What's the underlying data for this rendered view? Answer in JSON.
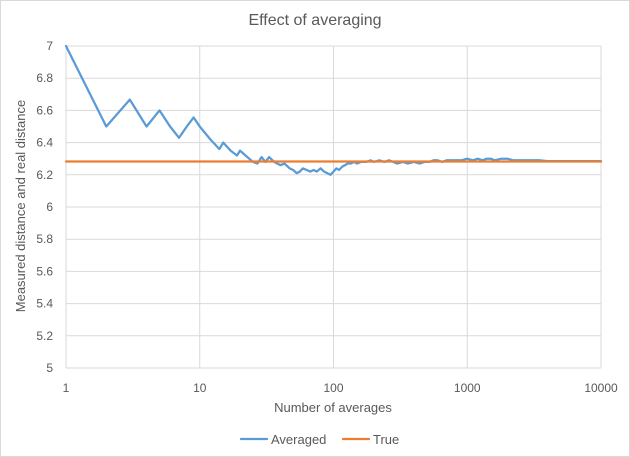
{
  "chart_data": {
    "type": "line",
    "title": "Effect of averaging",
    "xlabel": "Number of averages",
    "ylabel": "Measured distance and real distance",
    "x_scale": "log",
    "xlim": [
      1,
      10000
    ],
    "ylim": [
      5,
      7
    ],
    "x_ticks": [
      "1",
      "10",
      "100",
      "1000",
      "10000"
    ],
    "y_ticks": [
      "5",
      "5.2",
      "5.4",
      "5.6",
      "5.8",
      "6",
      "6.2",
      "6.4",
      "6.6",
      "6.8",
      "7"
    ],
    "grid": true,
    "legend_position": "bottom",
    "series": [
      {
        "name": "Averaged",
        "color": "#5b9bd5",
        "points": [
          [
            1,
            7.0
          ],
          [
            2,
            6.5
          ],
          [
            3,
            6.667
          ],
          [
            4,
            6.5
          ],
          [
            5,
            6.6
          ],
          [
            6,
            6.5
          ],
          [
            7,
            6.43
          ],
          [
            8,
            6.5
          ],
          [
            9,
            6.556
          ],
          [
            10,
            6.5
          ],
          [
            12,
            6.42
          ],
          [
            14,
            6.36
          ],
          [
            15,
            6.4
          ],
          [
            17,
            6.35
          ],
          [
            19,
            6.32
          ],
          [
            20,
            6.35
          ],
          [
            22,
            6.32
          ],
          [
            25,
            6.28
          ],
          [
            27,
            6.27
          ],
          [
            29,
            6.31
          ],
          [
            31,
            6.28
          ],
          [
            33,
            6.31
          ],
          [
            36,
            6.28
          ],
          [
            40,
            6.26
          ],
          [
            43,
            6.27
          ],
          [
            47,
            6.24
          ],
          [
            50,
            6.23
          ],
          [
            53,
            6.21
          ],
          [
            56,
            6.22
          ],
          [
            59,
            6.24
          ],
          [
            63,
            6.23
          ],
          [
            67,
            6.22
          ],
          [
            71,
            6.23
          ],
          [
            75,
            6.22
          ],
          [
            80,
            6.24
          ],
          [
            85,
            6.22
          ],
          [
            90,
            6.21
          ],
          [
            95,
            6.2
          ],
          [
            100,
            6.22
          ],
          [
            105,
            6.24
          ],
          [
            110,
            6.23
          ],
          [
            116,
            6.25
          ],
          [
            122,
            6.26
          ],
          [
            128,
            6.27
          ],
          [
            135,
            6.27
          ],
          [
            142,
            6.28
          ],
          [
            150,
            6.27
          ],
          [
            160,
            6.28
          ],
          [
            175,
            6.28
          ],
          [
            190,
            6.29
          ],
          [
            200,
            6.28
          ],
          [
            220,
            6.29
          ],
          [
            240,
            6.28
          ],
          [
            260,
            6.29
          ],
          [
            280,
            6.28
          ],
          [
            300,
            6.27
          ],
          [
            330,
            6.28
          ],
          [
            360,
            6.27
          ],
          [
            400,
            6.28
          ],
          [
            440,
            6.27
          ],
          [
            480,
            6.28
          ],
          [
            520,
            6.28
          ],
          [
            560,
            6.29
          ],
          [
            600,
            6.29
          ],
          [
            650,
            6.28
          ],
          [
            700,
            6.29
          ],
          [
            800,
            6.29
          ],
          [
            900,
            6.29
          ],
          [
            1000,
            6.3
          ],
          [
            1100,
            6.29
          ],
          [
            1200,
            6.3
          ],
          [
            1300,
            6.29
          ],
          [
            1400,
            6.3
          ],
          [
            1500,
            6.3
          ],
          [
            1600,
            6.29
          ],
          [
            1800,
            6.3
          ],
          [
            2000,
            6.3
          ],
          [
            2200,
            6.29
          ],
          [
            2500,
            6.29
          ],
          [
            3000,
            6.29
          ],
          [
            3500,
            6.29
          ],
          [
            4000,
            6.285
          ],
          [
            5000,
            6.285
          ],
          [
            6000,
            6.285
          ],
          [
            7000,
            6.285
          ],
          [
            8000,
            6.285
          ],
          [
            10000,
            6.285
          ]
        ]
      },
      {
        "name": "True",
        "color": "#ed7d31",
        "points": [
          [
            1,
            6.283
          ],
          [
            10000,
            6.283
          ]
        ]
      }
    ]
  }
}
